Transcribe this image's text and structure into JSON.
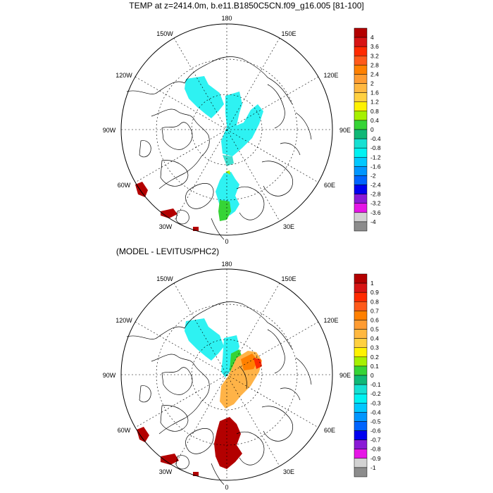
{
  "top_panel": {
    "title": "TEMP at z=2414.0m, b.e11.B1850C5CN.f09_g16.005 [81-100]",
    "lon_labels": {
      "n": "180",
      "nw": "150W",
      "ne": "150E",
      "wnw": "120W",
      "ene": "120E",
      "w": "90W",
      "e": "90E",
      "wsw": "60W",
      "esw": "60E",
      "sw": "30W",
      "se": "30E",
      "s": "0"
    },
    "colorbar": {
      "labels": [
        "4",
        "3.6",
        "3.2",
        "2.8",
        "2.4",
        "2",
        "1.6",
        "1.2",
        "0.8",
        "0.4",
        "0",
        "-0.4",
        "-0.8",
        "-1.2",
        "-1.6",
        "-2",
        "-2.4",
        "-2.8",
        "-3.2",
        "-3.6",
        "-4"
      ]
    }
  },
  "bottom_panel": {
    "title": "(MODEL - LEVITUS/PHC2)",
    "lon_labels": {
      "n": "180",
      "nw": "150W",
      "ne": "150E",
      "wnw": "120W",
      "ene": "120E",
      "w": "90W",
      "e": "90E",
      "wsw": "60W",
      "esw": "60E",
      "sw": "30W",
      "se": "30E",
      "s": "0"
    },
    "colorbar": {
      "labels": [
        "1",
        "0.9",
        "0.8",
        "0.7",
        "0.6",
        "0.5",
        "0.4",
        "0.3",
        "0.2",
        "0.1",
        "0",
        "-0.1",
        "-0.2",
        "-0.3",
        "-0.4",
        "-0.5",
        "-0.6",
        "-0.7",
        "-0.8",
        "-0.9",
        "-1"
      ]
    }
  },
  "colors": {
    "scale": [
      "#b30000",
      "#d71414",
      "#ff2a00",
      "#ff5a1a",
      "#ff8000",
      "#ff9c32",
      "#ffb840",
      "#ffd040",
      "#fff200",
      "#a6f000",
      "#36d436",
      "#10b876",
      "#16e0d2",
      "#00f2f2",
      "#00c8ff",
      "#0096ff",
      "#0064ff",
      "#0000f0",
      "#8a1ad6",
      "#e616e6",
      "#d2d2d2",
      "#8c8c8c"
    ],
    "ocean_cyan": "#2ef2f2",
    "ocean_orange": "#ffb347",
    "dark_red": "#b30000"
  }
}
